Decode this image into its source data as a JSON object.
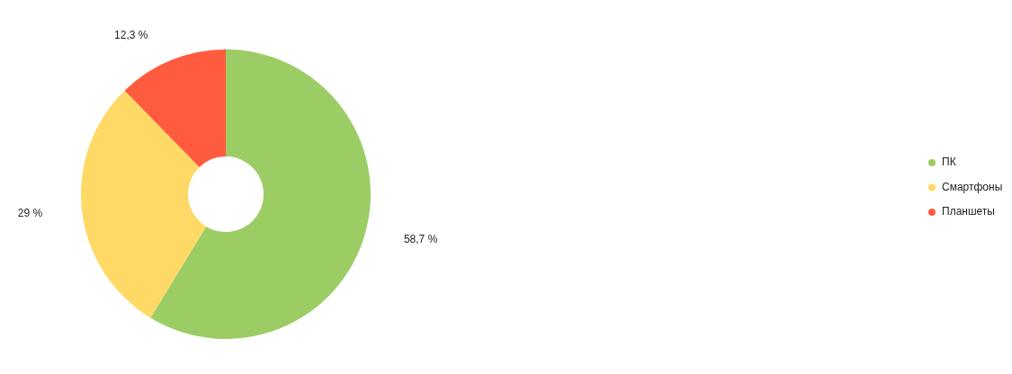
{
  "chart_data": {
    "type": "donut",
    "categories": [
      "ПК",
      "Смартфоны",
      "Планшеты"
    ],
    "values": [
      58.7,
      29,
      12.3
    ],
    "colors": [
      "#9ccd64",
      "#ffd966",
      "#ff5b3e"
    ],
    "value_labels": [
      "58,7 %",
      "29 %",
      "12,3 %"
    ],
    "legend": "right"
  }
}
